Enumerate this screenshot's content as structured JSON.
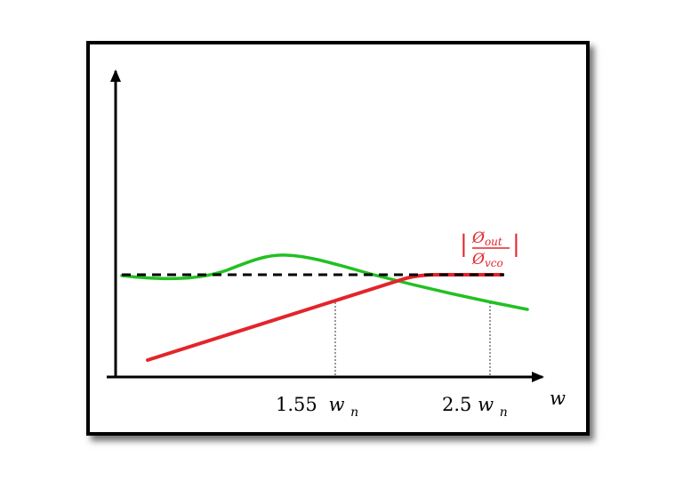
{
  "labels": {
    "x_axis": "w",
    "tick1_num": "1.55",
    "tick1_var": "w",
    "tick1_sub": "n",
    "tick2_num": "2.5",
    "tick2_var": "w",
    "tick2_sub": "n",
    "ratio_num_sym": "Ø",
    "ratio_num_sub": "out",
    "ratio_den_sym": "Ø",
    "ratio_den_sub": "vco",
    "abs_bar": "|"
  },
  "colors": {
    "axis": "#000000",
    "green": "#22c022",
    "red": "#e3242b",
    "dashed": "#000000",
    "guide": "#555555"
  }
}
